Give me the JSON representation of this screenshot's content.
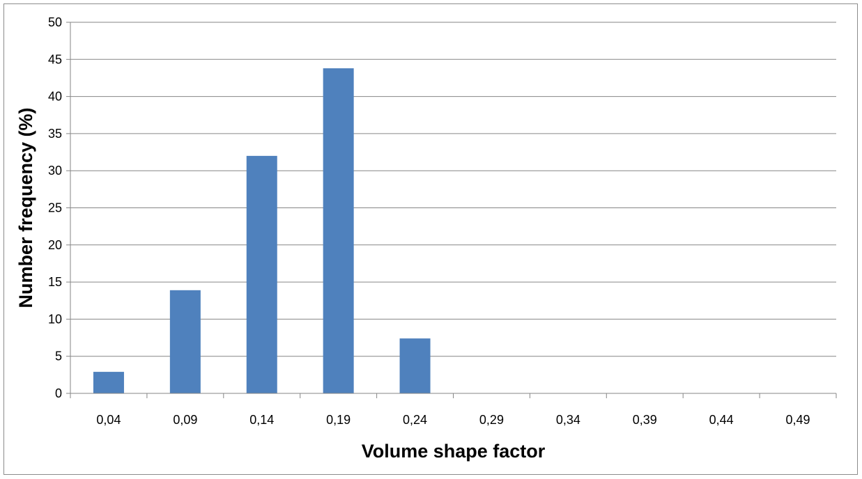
{
  "chart_data": {
    "type": "bar",
    "categories": [
      "0,04",
      "0,09",
      "0,14",
      "0,19",
      "0,24",
      "0,29",
      "0,34",
      "0,39",
      "0,44",
      "0,49"
    ],
    "values": [
      2.9,
      13.9,
      32.0,
      43.8,
      7.4,
      0,
      0,
      0,
      0,
      0
    ],
    "xlabel": "Volume shape factor",
    "ylabel": "Number frequency (%)",
    "ylim": [
      0,
      50
    ],
    "yticks": [
      "0",
      "5",
      "10",
      "15",
      "20",
      "25",
      "30",
      "35",
      "40",
      "45",
      "50"
    ],
    "grid": true,
    "legend": "none",
    "bar_color": "#4f81bd",
    "grid_color": "#868686",
    "axis_color": "#868686"
  }
}
